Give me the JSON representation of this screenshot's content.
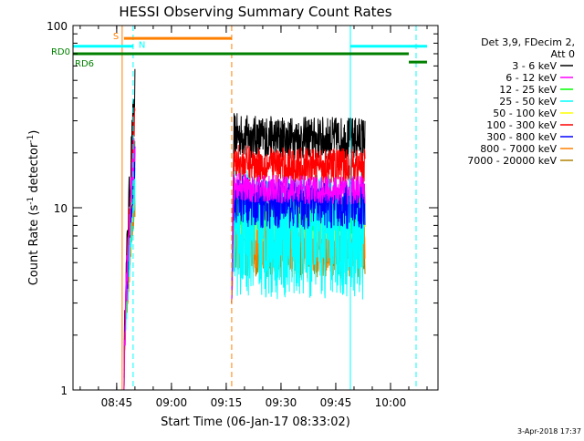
{
  "chart_data": {
    "type": "line",
    "title": "HESSI Observing Summary Count Rates",
    "ylabel_main": "Count Rate (s",
    "ylabel_sup1": "-1",
    "ylabel_mid": " detector",
    "ylabel_sup2": "-1",
    "ylabel_end": ")",
    "xlabel": "Start Time (06-Jan-17 08:33:02)",
    "y_scale": "log",
    "ylim": [
      1,
      100
    ],
    "xlim": [
      "08:33:02",
      "10:13:00"
    ],
    "x_ticks": [
      "08:45",
      "09:00",
      "09:15",
      "09:30",
      "09:45",
      "10:00"
    ],
    "y_ticks": [
      {
        "value": 1,
        "label": "1"
      },
      {
        "value": 10,
        "label": "10"
      },
      {
        "value": 100,
        "label": "100"
      }
    ],
    "timestamp": "3-Apr-2018 17:37",
    "legend": {
      "header": [
        "Det 3,9, FDecim 2,",
        "Att 0"
      ],
      "placement": "right",
      "entries": [
        {
          "label": "3 - 6 keV",
          "color": "#000000"
        },
        {
          "label": "6 - 12 keV",
          "color": "#ff00ff"
        },
        {
          "label": "12 - 25 keV",
          "color": "#00ff00"
        },
        {
          "label": "25 - 50 keV",
          "color": "#00ffff"
        },
        {
          "label": "50 - 100 keV",
          "color": "#ffff00"
        },
        {
          "label": "100 - 300 keV",
          "color": "#ff0000"
        },
        {
          "label": "300 - 800 keV",
          "color": "#0000ff"
        },
        {
          "label": "800 - 7000 keV",
          "color": "#ff8000"
        },
        {
          "label": "7000 - 20000 keV",
          "color": "#b08000"
        }
      ]
    },
    "flag_bars": [
      {
        "label": "S",
        "color": "#ff8000",
        "start": "08:47:00",
        "end": "09:16:30",
        "level": 85
      },
      {
        "label": "N",
        "color": "#00ffff",
        "start": "08:33:02",
        "end": "08:49:30",
        "level": 77,
        "start2": "09:49:00",
        "end2": "10:10:00"
      },
      {
        "label": "RD0",
        "color": "#008000",
        "start": "08:33:02",
        "end": "10:05:00",
        "level": 70
      },
      {
        "label": "RD6",
        "color": "#008000",
        "start": "10:05:00",
        "end": "10:10:00",
        "level": 63
      }
    ],
    "vertical_lines": [
      {
        "time": "08:46:30",
        "color": "#ff8000",
        "style": "solid"
      },
      {
        "time": "08:49:30",
        "color": "#00ffff",
        "style": "dashed"
      },
      {
        "time": "09:16:30",
        "color": "#ff8000",
        "style": "dashed"
      },
      {
        "time": "09:49:00",
        "color": "#00ffff",
        "style": "solid"
      },
      {
        "time": "10:07:00",
        "color": "#00ffff",
        "style": "dashed"
      }
    ],
    "segments": [
      {
        "start": "08:47:00",
        "end": "08:50:00",
        "shape": "rise"
      },
      {
        "start": "09:16:30",
        "end": "09:53:00",
        "shape": "plateau"
      }
    ],
    "series": [
      {
        "name": "3 - 6 keV",
        "color": "#000000",
        "level": 24,
        "noise": 0.12
      },
      {
        "name": "7000 - 20000 keV",
        "color": "#b08000",
        "level": 6.2,
        "noise": 0.18
      },
      {
        "name": "800 - 7000 keV",
        "color": "#ff8000",
        "level": 6.4,
        "noise": 0.16
      },
      {
        "name": "50 - 100 keV",
        "color": "#ffff00",
        "level": 8.5,
        "noise": 0.12
      },
      {
        "name": "12 - 25 keV",
        "color": "#00ff00",
        "level": 9.5,
        "noise": 0.12
      },
      {
        "name": "25 - 50 keV",
        "color": "#00ffff",
        "level": 7.0,
        "noise": 0.35
      },
      {
        "name": "300 - 800 keV",
        "color": "#0000ff",
        "level": 10.5,
        "noise": 0.14
      },
      {
        "name": "100 - 300 keV",
        "color": "#ff0000",
        "level": 17.0,
        "noise": 0.1
      },
      {
        "name": "6 - 12 keV",
        "color": "#ff00ff",
        "level": 12.5,
        "noise": 0.08
      }
    ]
  }
}
